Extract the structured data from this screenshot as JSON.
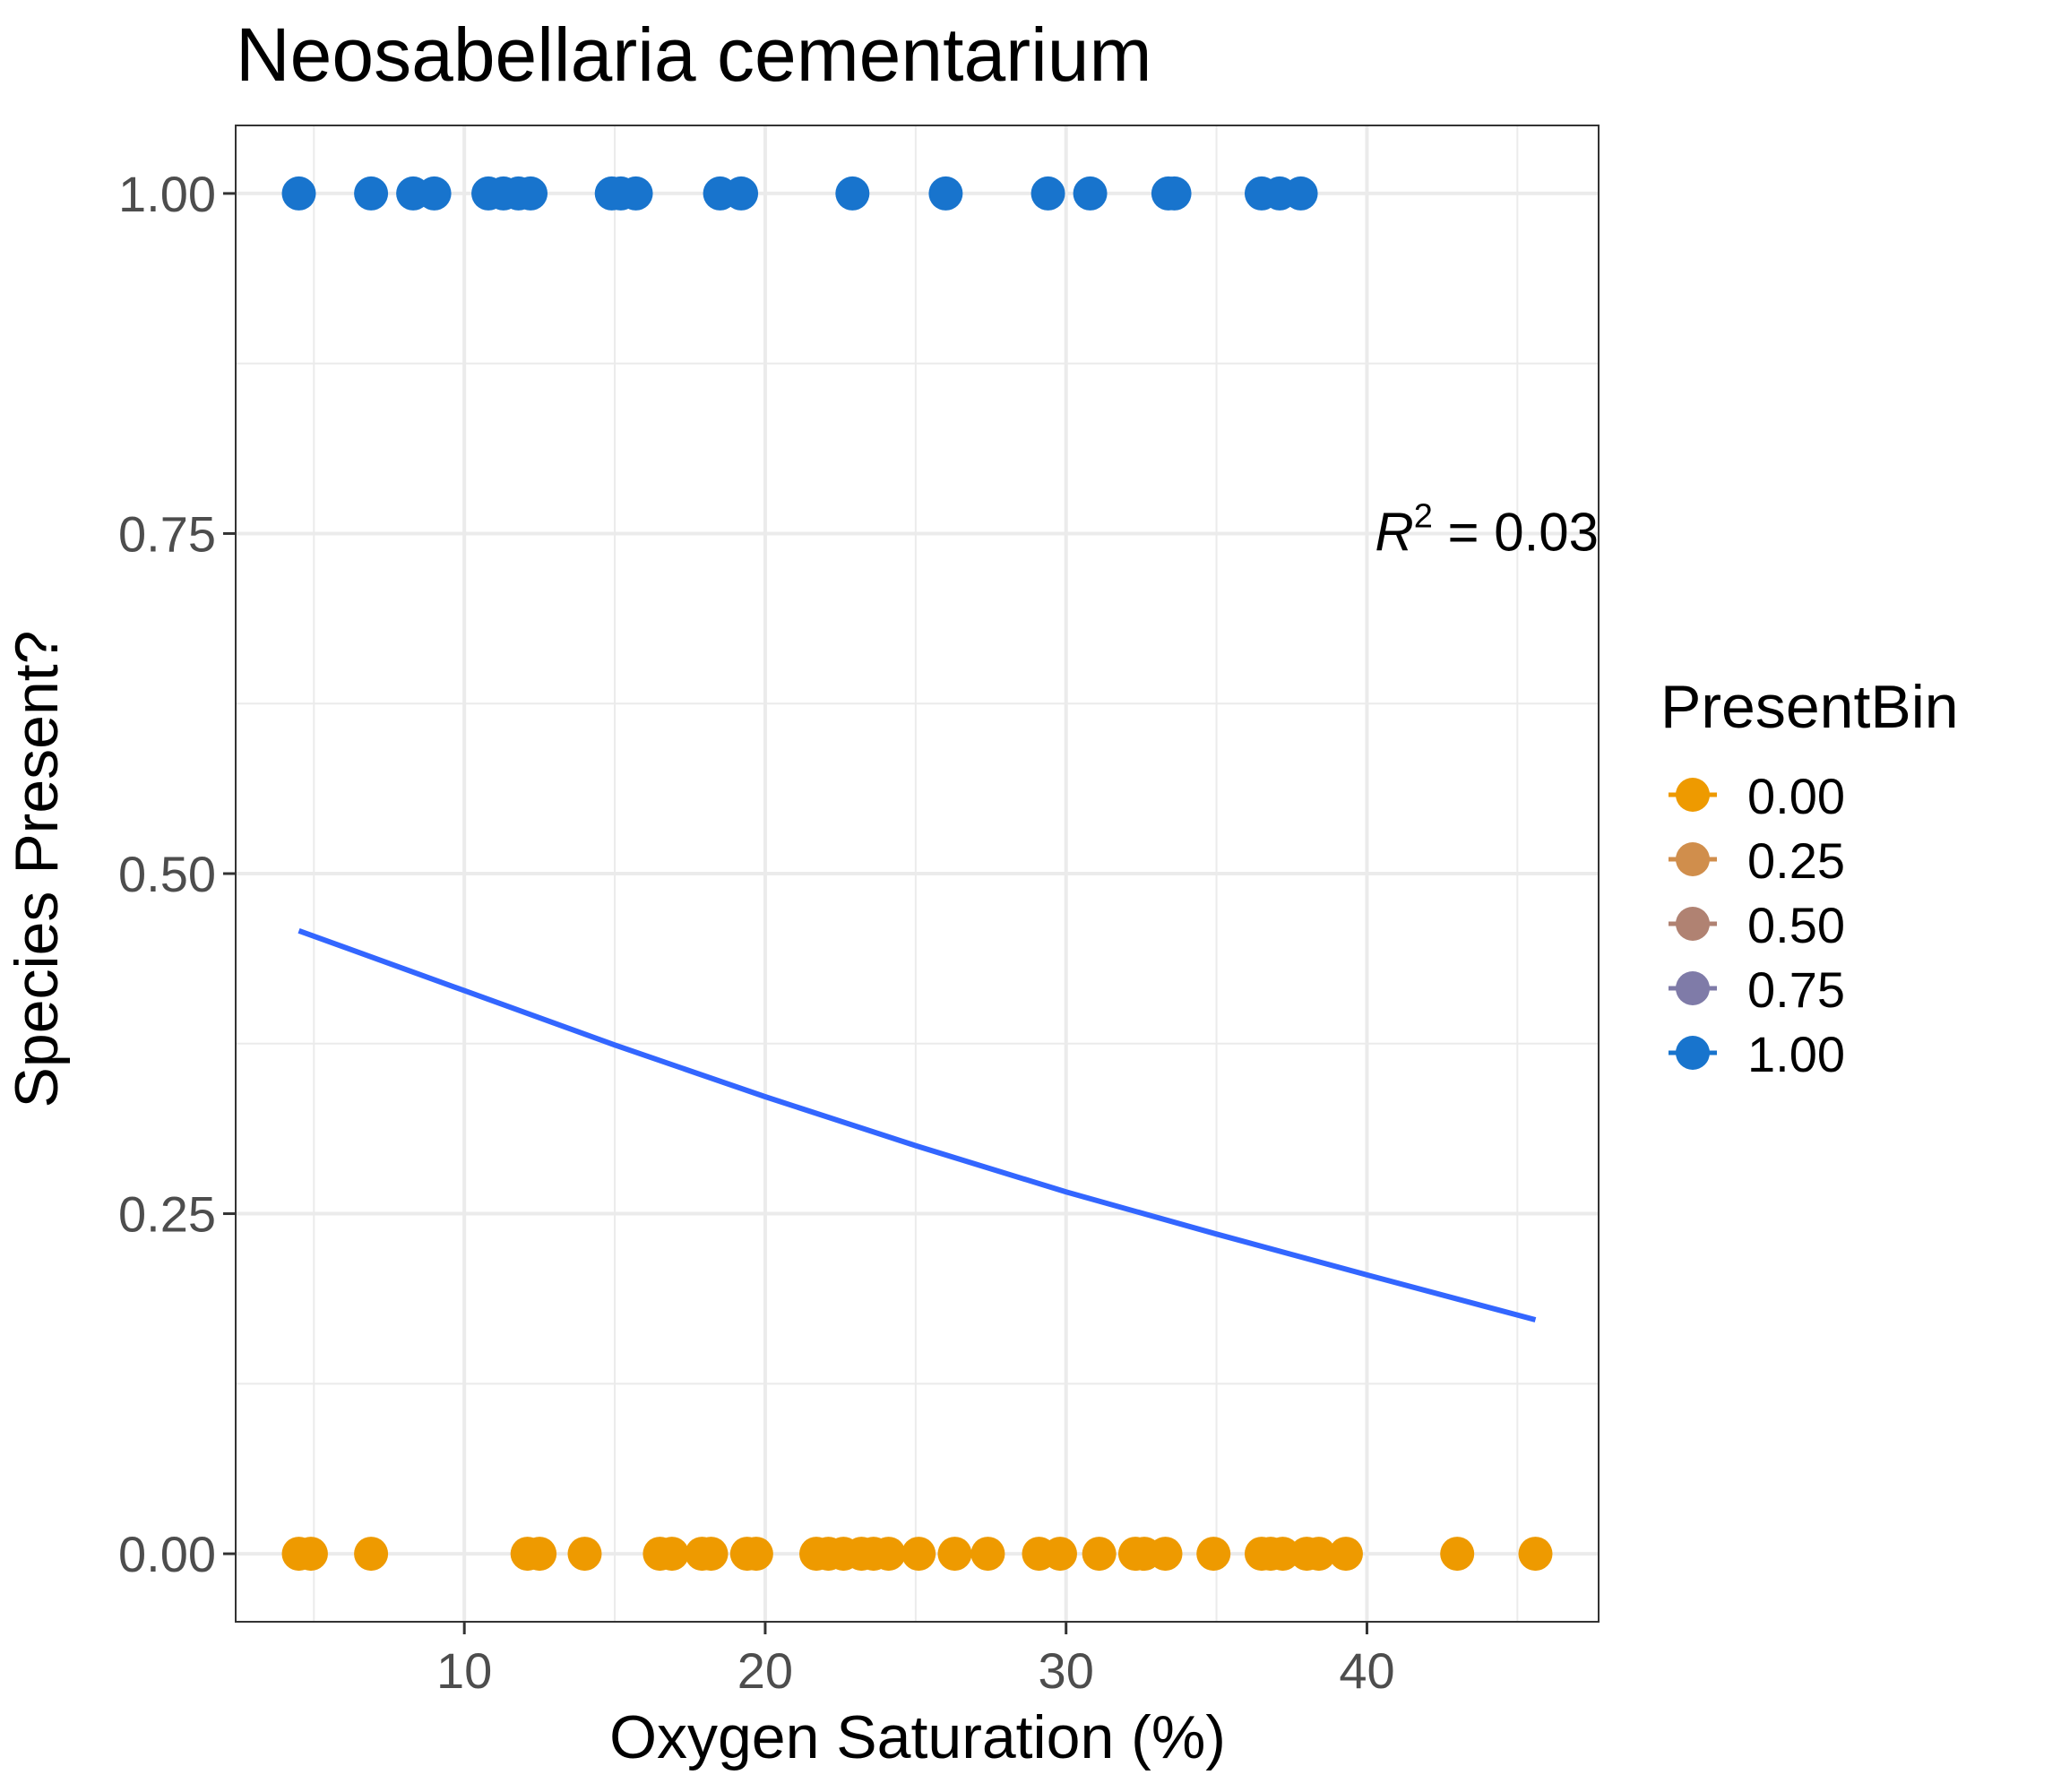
{
  "chart_data": {
    "type": "scatter",
    "title": "Neosabellaria cementarium",
    "xlabel": "Oxygen Saturation (%)",
    "ylabel": "Species Present?",
    "xlim": [
      2.4,
      47.7
    ],
    "ylim": [
      -0.05,
      1.05
    ],
    "x_ticks": [
      10,
      20,
      30,
      40
    ],
    "x_tick_labels": [
      "10",
      "20",
      "30",
      "40"
    ],
    "y_ticks": [
      0,
      0.25,
      0.5,
      0.75,
      1.0
    ],
    "y_tick_labels": [
      "0.00",
      "0.25",
      "0.50",
      "0.75",
      "1.00"
    ],
    "grid": true,
    "annotation": {
      "symbol": "R",
      "superscript": "2",
      "text": " = 0.03",
      "x": 47.7,
      "y": 0.74
    },
    "legend": {
      "title": "PresentBin",
      "position": "right",
      "entries": [
        {
          "label": "0.00",
          "color": "#EE9A00"
        },
        {
          "label": "0.25",
          "color": "#D08E4C"
        },
        {
          "label": "0.50",
          "color": "#B08272"
        },
        {
          "label": "0.75",
          "color": "#7F7BA8"
        },
        {
          "label": "1.00",
          "color": "#1874CD"
        }
      ]
    },
    "series": [
      {
        "color": "#1874CD",
        "y": 1,
        "x": [
          4.5,
          6.9,
          8.3,
          9.0,
          10.8,
          11.3,
          11.8,
          12.2,
          14.9,
          15.2,
          15.7,
          18.5,
          19.2,
          22.9,
          26.0,
          29.4,
          30.8,
          33.4,
          33.6,
          36.5,
          37.1,
          37.8
        ]
      },
      {
        "color": "#EE9A00",
        "y": 0,
        "x": [
          4.5,
          4.9,
          6.9,
          12.1,
          12.5,
          14.0,
          16.5,
          16.9,
          17.9,
          18.2,
          19.4,
          19.7,
          21.7,
          22.1,
          22.6,
          23.2,
          23.6,
          24.1,
          25.1,
          26.3,
          27.4,
          29.1,
          29.8,
          31.1,
          32.3,
          32.6,
          33.3,
          34.9,
          36.5,
          36.8,
          37.2,
          38.0,
          38.4,
          39.3,
          43.0,
          45.6
        ]
      }
    ],
    "fit_line": {
      "color": "#3366FF",
      "x": [
        4.5,
        10,
        15,
        20,
        25,
        30,
        35,
        40,
        45.6
      ],
      "y": [
        0.458,
        0.414,
        0.374,
        0.336,
        0.3,
        0.266,
        0.235,
        0.205,
        0.172
      ]
    }
  }
}
